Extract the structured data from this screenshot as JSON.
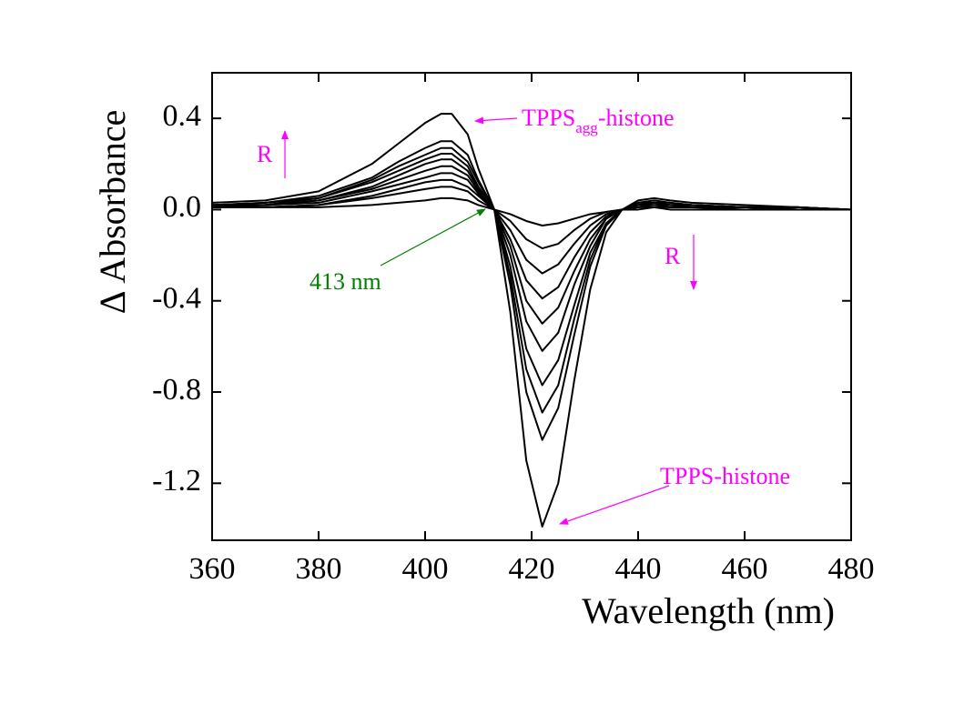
{
  "chart_data": {
    "type": "line",
    "x_label": "Wavelength (nm)",
    "y_label": "Δ Absorbance",
    "x": [
      360,
      370,
      380,
      390,
      395,
      400,
      403,
      405,
      408,
      410,
      413,
      416,
      419,
      422,
      425,
      428,
      431,
      434,
      437,
      440,
      443,
      446,
      450,
      460,
      470,
      480
    ],
    "series": [
      {
        "color": "#000000",
        "values": [
          0.03,
          0.04,
          0.08,
          0.2,
          0.29,
          0.38,
          0.42,
          0.42,
          0.33,
          0.18,
          0,
          -0.45,
          -1.1,
          -1.39,
          -1.2,
          -0.75,
          -0.35,
          -0.1,
          0,
          0.04,
          0.05,
          0.04,
          0.03,
          0.02,
          0.01,
          0
        ]
      },
      {
        "color": "#000000",
        "values": [
          0.02,
          0.03,
          0.06,
          0.14,
          0.21,
          0.27,
          0.3,
          0.3,
          0.24,
          0.13,
          0,
          -0.33,
          -0.8,
          -1.01,
          -0.87,
          -0.55,
          -0.25,
          -0.07,
          0,
          0.03,
          0.04,
          0.03,
          0.02,
          0.01,
          0.01,
          0
        ]
      },
      {
        "color": "#000000",
        "values": [
          0.02,
          0.03,
          0.05,
          0.13,
          0.19,
          0.24,
          0.27,
          0.27,
          0.21,
          0.12,
          0,
          -0.29,
          -0.7,
          -0.89,
          -0.77,
          -0.48,
          -0.22,
          -0.06,
          0,
          0.03,
          0.03,
          0.03,
          0.02,
          0.01,
          0.01,
          0
        ]
      },
      {
        "color": "#000000",
        "values": [
          0.02,
          0.02,
          0.05,
          0.12,
          0.17,
          0.22,
          0.245,
          0.245,
          0.19,
          0.1,
          0,
          -0.25,
          -0.61,
          -0.77,
          -0.66,
          -0.42,
          -0.19,
          -0.06,
          0,
          0.02,
          0.03,
          0.02,
          0.02,
          0.01,
          0.01,
          0
        ]
      },
      {
        "color": "#000000",
        "values": [
          0.02,
          0.02,
          0.04,
          0.1,
          0.15,
          0.2,
          0.22,
          0.22,
          0.17,
          0.09,
          0,
          -0.2,
          -0.49,
          -0.62,
          -0.54,
          -0.33,
          -0.16,
          -0.04,
          0,
          0.02,
          0.03,
          0.02,
          0.02,
          0.01,
          0.01,
          0
        ]
      },
      {
        "color": "#000000",
        "values": [
          0.01,
          0.02,
          0.04,
          0.09,
          0.13,
          0.17,
          0.19,
          0.19,
          0.15,
          0.08,
          0,
          -0.16,
          -0.4,
          -0.5,
          -0.43,
          -0.27,
          -0.13,
          -0.04,
          0,
          0.02,
          0.02,
          0.02,
          0.01,
          0.01,
          0,
          0
        ]
      },
      {
        "color": "#000000",
        "values": [
          0.01,
          0.02,
          0.03,
          0.08,
          0.11,
          0.14,
          0.16,
          0.16,
          0.13,
          0.07,
          0,
          -0.13,
          -0.31,
          -0.39,
          -0.34,
          -0.21,
          -0.1,
          -0.03,
          0,
          0.02,
          0.02,
          0.02,
          0.01,
          0.01,
          0,
          0
        ]
      },
      {
        "color": "#000000",
        "values": [
          0.01,
          0.01,
          0.02,
          0.06,
          0.09,
          0.12,
          0.13,
          0.13,
          0.1,
          0.06,
          0,
          -0.09,
          -0.22,
          -0.28,
          -0.24,
          -0.15,
          -0.07,
          -0.02,
          0,
          0.01,
          0.02,
          0.01,
          0.01,
          0.01,
          0,
          0
        ]
      },
      {
        "color": "#000000",
        "values": [
          0.01,
          0.01,
          0.02,
          0.05,
          0.07,
          0.09,
          0.1,
          0.1,
          0.08,
          0.04,
          0,
          -0.05,
          -0.13,
          -0.17,
          -0.15,
          -0.09,
          -0.04,
          -0.01,
          0,
          0.01,
          0.01,
          0.01,
          0.01,
          0,
          0,
          0
        ]
      },
      {
        "color": "#000000",
        "values": [
          0.01,
          0.01,
          0.01,
          0.02,
          0.03,
          0.04,
          0.05,
          0.05,
          0.04,
          0.02,
          0,
          -0.02,
          -0.05,
          -0.07,
          -0.06,
          -0.04,
          -0.02,
          -0.01,
          0,
          0,
          0.01,
          0,
          0,
          0,
          0,
          0
        ]
      }
    ],
    "xlim": [
      360,
      480
    ],
    "xticks": [
      360,
      380,
      400,
      420,
      440,
      460,
      480
    ],
    "ylim": [
      -1.45,
      0.6
    ],
    "yticks": [
      -1.2,
      -0.8,
      -0.4,
      {
        "value": 0,
        "label": "0.0"
      },
      0.4
    ],
    "annotations": [
      {
        "text": "TPPS",
        "subscript": "agg",
        "text_after": "-histone",
        "color": "#ff00ff"
      },
      {
        "text": "TPPS-histone",
        "color": "#ff00ff"
      },
      {
        "text": "413 nm",
        "color": "#007f00"
      },
      {
        "text": "R",
        "color": "#ff00ff"
      },
      {
        "text": "R",
        "color": "#ff00ff"
      }
    ]
  }
}
